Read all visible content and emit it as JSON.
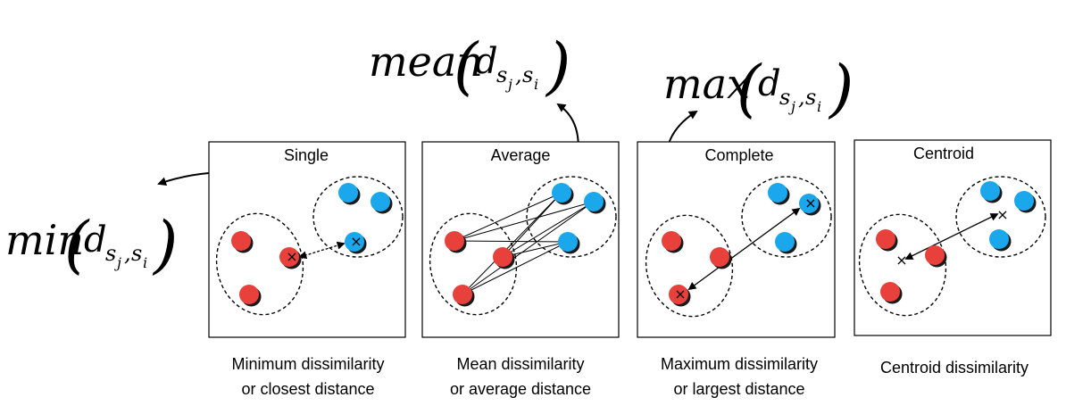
{
  "panels": [
    {
      "id": "single",
      "title": "Single",
      "caption_line1": "Minimum dissimilarity",
      "caption_line2": "or closest distance"
    },
    {
      "id": "average",
      "title": "Average",
      "caption_line1": "Mean dissimilarity",
      "caption_line2": "or average distance"
    },
    {
      "id": "complete",
      "title": "Complete",
      "caption_line1": "Maximum dissimilarity",
      "caption_line2": "or largest distance"
    },
    {
      "id": "centroid",
      "title": "Centroid",
      "caption_line1": "Centroid dissimilarity",
      "caption_line2": ""
    }
  ],
  "formulas": {
    "min": {
      "func": "min",
      "base": "d",
      "sub1": "s",
      "sub1_sub": "j",
      "sep": ",",
      "sub2": "s",
      "sub2_sub": "i"
    },
    "mean": {
      "func": "mean",
      "base": "d",
      "sub1": "s",
      "sub1_sub": "j",
      "sep": ",",
      "sub2": "s",
      "sub2_sub": "i"
    },
    "max": {
      "func": "max",
      "base": "d",
      "sub1": "s",
      "sub1_sub": "j",
      "sep": ",",
      "sub2": "s",
      "sub2_sub": "i"
    }
  },
  "colors": {
    "red_point": "#e8403a",
    "blue_point": "#1aa7ec",
    "shadow": "#1a1a1a"
  },
  "markers": {
    "center_mark": "×"
  }
}
